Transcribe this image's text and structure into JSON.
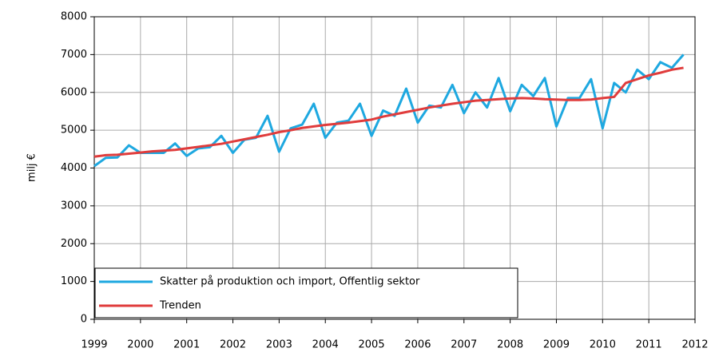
{
  "chart_data": {
    "type": "line",
    "y_label": "milj €",
    "x": [
      1999,
      1999.25,
      1999.5,
      1999.75,
      2000,
      2000.25,
      2000.5,
      2000.75,
      2001,
      2001.25,
      2001.5,
      2001.75,
      2002,
      2002.25,
      2002.5,
      2002.75,
      2003,
      2003.25,
      2003.5,
      2003.75,
      2004,
      2004.25,
      2004.5,
      2004.75,
      2005,
      2005.25,
      2005.5,
      2005.75,
      2006,
      2006.25,
      2006.5,
      2006.75,
      2007,
      2007.25,
      2007.5,
      2007.75,
      2008,
      2008.25,
      2008.5,
      2008.75,
      2009,
      2009.25,
      2009.5,
      2009.75,
      2010,
      2010.25,
      2010.5,
      2010.75,
      2011,
      2011.25,
      2011.5,
      2011.75
    ],
    "series": [
      {
        "name": "Skatter på produktion och import, Offentlig sektor",
        "color": "#1ea8e0",
        "values": [
          4050,
          4270,
          4280,
          4600,
          4400,
          4400,
          4400,
          4650,
          4320,
          4520,
          4550,
          4850,
          4400,
          4750,
          4800,
          5380,
          4430,
          5050,
          5150,
          5700,
          4800,
          5200,
          5250,
          5700,
          4850,
          5520,
          5380,
          6100,
          5200,
          5650,
          5600,
          6200,
          5450,
          6000,
          5600,
          6380,
          5500,
          6200,
          5900,
          6380,
          5100,
          5850,
          5850,
          6350,
          5050,
          6250,
          6000,
          6600,
          6350,
          6800,
          6650,
          7000
        ]
      },
      {
        "name": "Trenden",
        "color": "#e03c3c",
        "values": [
          4300,
          4340,
          4350,
          4380,
          4410,
          4440,
          4460,
          4480,
          4520,
          4560,
          4600,
          4640,
          4700,
          4760,
          4820,
          4880,
          4950,
          5000,
          5060,
          5100,
          5140,
          5170,
          5200,
          5240,
          5280,
          5360,
          5420,
          5480,
          5540,
          5600,
          5650,
          5700,
          5740,
          5780,
          5800,
          5820,
          5840,
          5850,
          5840,
          5820,
          5810,
          5800,
          5800,
          5810,
          5850,
          5880,
          6250,
          6350,
          6450,
          6520,
          6600,
          6650
        ]
      }
    ],
    "xlim": [
      1999,
      2012
    ],
    "xticks": [
      1999,
      2000,
      2001,
      2002,
      2003,
      2004,
      2005,
      2006,
      2007,
      2008,
      2009,
      2010,
      2011,
      2012
    ],
    "ylim": [
      0,
      8000
    ],
    "yticks": [
      0,
      1000,
      2000,
      3000,
      4000,
      5000,
      6000,
      7000,
      8000
    ],
    "grid": true,
    "legend": "lower left"
  }
}
